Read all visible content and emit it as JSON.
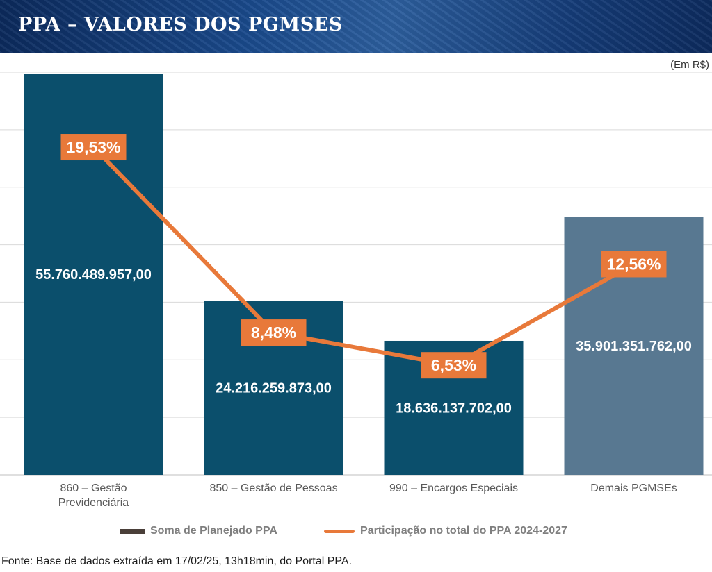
{
  "header": {
    "title": "PPA – VALORES DOS PGMSES"
  },
  "unit_note": "(Em R$)",
  "chart_data": {
    "type": "bar",
    "categories": [
      "860 – Gestão Previdenciária",
      "850 – Gestão de Pessoas",
      "990 – Encargos Especiais",
      "Demais PGMSEs"
    ],
    "series": [
      {
        "name": "Soma de Planejado PPA",
        "type": "bar",
        "values": [
          55760489957.0,
          24216259873.0,
          18636137702.0,
          35901351762.0
        ],
        "labels": [
          "55.760.489.957,00",
          "24.216.259.873,00",
          "18.636.137.702,00",
          "35.901.351.762,00"
        ],
        "colors": [
          "#0b4f6c",
          "#0b4f6c",
          "#0b4f6c",
          "#587891"
        ]
      },
      {
        "name": "Participação no total do PPA 2024-2027",
        "type": "line",
        "values": [
          19.53,
          8.48,
          6.53,
          12.56
        ],
        "labels": [
          "19,53%",
          "8,48%",
          "6,53%",
          "12,56%"
        ],
        "color": "#e8793a"
      }
    ],
    "ylim": [
      0,
      56000000000
    ],
    "y2lim": [
      0,
      24
    ],
    "grid": true,
    "legend": "bottom"
  },
  "legend": {
    "bar_label": "Soma de Planejado PPA",
    "line_label": "Participação no total do PPA 2024-2027"
  },
  "footer": {
    "source": "Fonte: Base de dados extraída em 17/02/25, 13h18min, do Portal PPA."
  }
}
